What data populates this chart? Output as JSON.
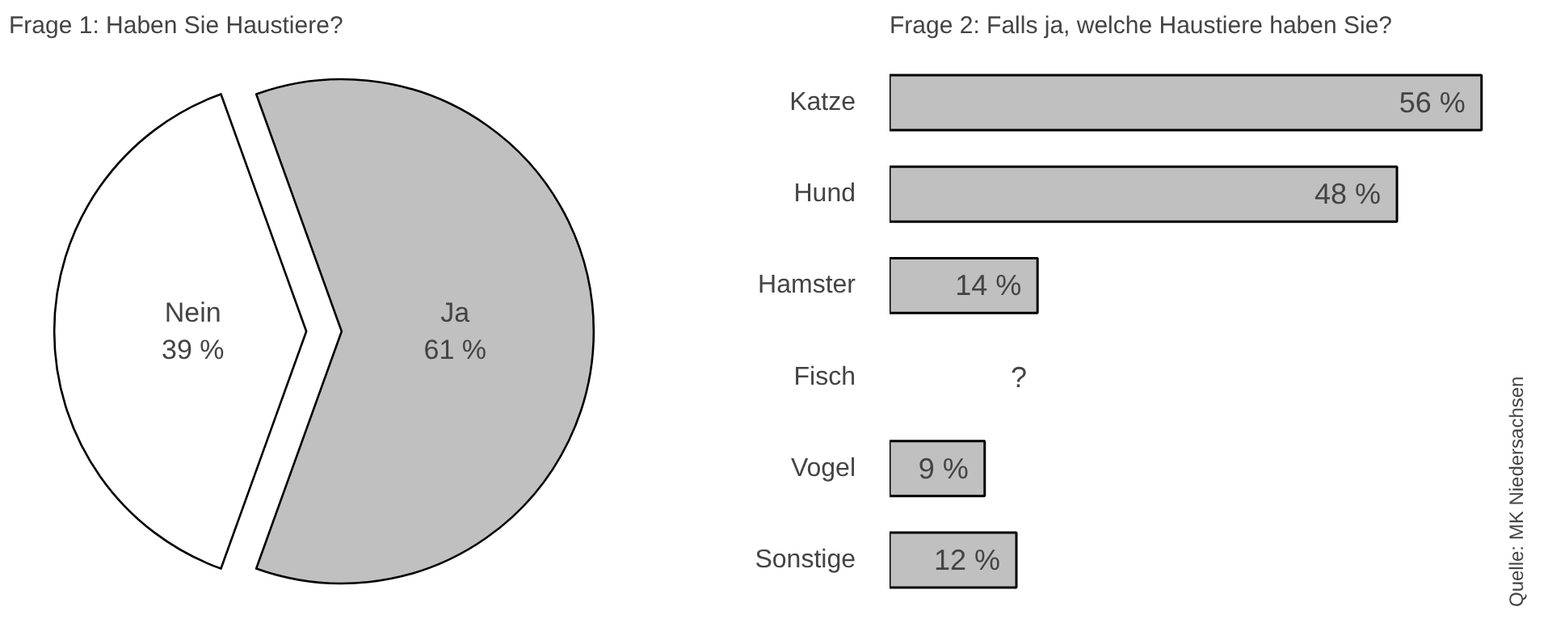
{
  "chart_data": [
    {
      "type": "pie",
      "title": "Frage 1: Haben Sie Haustiere?",
      "categories": [
        "Nein",
        "Ja"
      ],
      "values": [
        39,
        61
      ],
      "colors": [
        "#ffffff",
        "#c0c0c0"
      ],
      "value_labels": [
        "39 %",
        "61 %"
      ]
    },
    {
      "type": "bar",
      "orientation": "horizontal",
      "title": "Frage 2: Falls ja, welche Haustiere haben Sie?",
      "categories": [
        "Katze",
        "Hund",
        "Hamster",
        "Fisch",
        "Vogel",
        "Sonstige"
      ],
      "values": [
        56,
        48,
        14,
        null,
        9,
        12
      ],
      "value_labels": [
        "56 %",
        "48 %",
        "14 %",
        "?",
        "9 %",
        "12 %"
      ],
      "color": "#c0c0c0",
      "tick_labels": "y",
      "grid": false,
      "annotations": [
        "Quelle: MK Niedersachsen"
      ]
    }
  ]
}
